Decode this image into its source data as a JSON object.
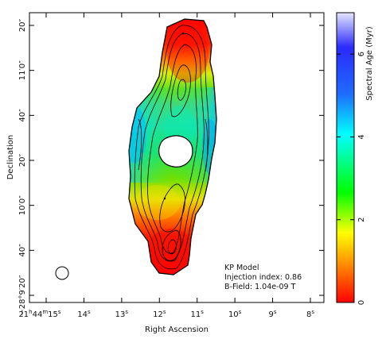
{
  "chart_data": {
    "type": "heatmap",
    "title": "",
    "xlabel": "Right Ascension",
    "ylabel": "Declination",
    "x_ticks": [
      {
        "ra_s": 15,
        "label_h": "21",
        "label_m": "44",
        "label_s": "15"
      },
      {
        "ra_s": 14,
        "label_s": "14"
      },
      {
        "ra_s": 13,
        "label_s": "13"
      },
      {
        "ra_s": 12,
        "label_s": "12"
      },
      {
        "ra_s": 11,
        "label_s": "11"
      },
      {
        "ra_s": 10,
        "label_s": "10"
      },
      {
        "ra_s": 9,
        "label_s": "9"
      },
      {
        "ra_s": 8,
        "label_s": "8"
      }
    ],
    "y_ticks": [
      {
        "dec_arcsec": 20,
        "label": "20″"
      },
      {
        "dec_arcsec": 0,
        "label": "11′0″"
      },
      {
        "dec_arcsec": -20,
        "label": "40″"
      },
      {
        "dec_arcsec": -40,
        "label": "20″"
      },
      {
        "dec_arcsec": -60,
        "label": "10′0″"
      },
      {
        "dec_arcsec": -80,
        "label": "40″"
      },
      {
        "dec_arcsec": -100,
        "label": "−28°9′20″"
      }
    ],
    "colorbar": {
      "label": "Spectral Age (Myr)",
      "range": [
        0,
        7
      ],
      "ticks": [
        {
          "value": 0,
          "label": "0"
        },
        {
          "value": 2,
          "label": "2"
        },
        {
          "value": 4,
          "label": "4"
        },
        {
          "value": 6,
          "label": "6"
        }
      ]
    },
    "annotations": [
      "KP Model",
      "Injection index: 0.86",
      "B-Field: 1.04e-09 T"
    ],
    "colors": {
      "age_0": "#ff0000",
      "age_1": "#ff8000",
      "age_2": "#ffff00",
      "age_3": "#00ff00",
      "age_4": "#00ffff",
      "age_5": "#2060ff",
      "age_6": "#0000c0",
      "age_7": "#e6e6ff"
    }
  }
}
